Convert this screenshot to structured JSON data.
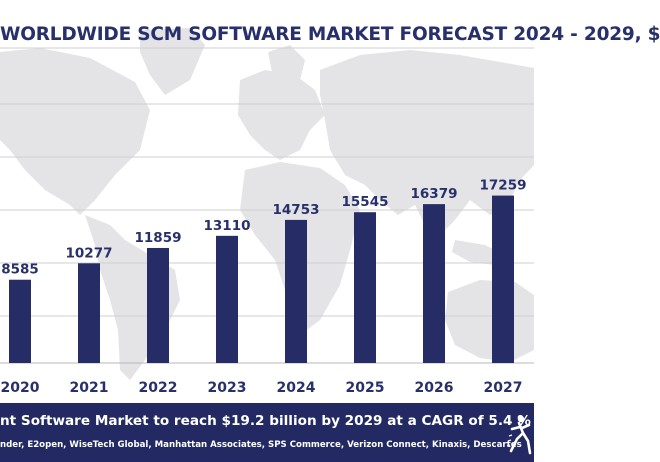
{
  "chart_data": {
    "type": "bar",
    "title": "WORLDWIDE SCM SOFTWARE MARKET FORECAST 2024 - 2029, $",
    "categories": [
      "2020",
      "2021",
      "2022",
      "2023",
      "2024",
      "2025",
      "2026",
      "2027"
    ],
    "values": [
      8585,
      10277,
      11859,
      13110,
      14753,
      15545,
      16379,
      17259
    ],
    "data_labels": [
      "8585",
      "10277",
      "11859",
      "13110",
      "14753",
      "15545",
      "16379",
      "17259"
    ],
    "xlabel": "",
    "ylabel": "",
    "grid": true,
    "legend": "none",
    "bar_color": "#252c66"
  },
  "footer": {
    "headline": "nt Software Market to reach $19.2 billion by 2029 at a CAGR of 5.4 %",
    "vendors": "nder, E2open, WiseTech Global, Manhattan Associates, SPS Commerce, Verizon Connect, Kinaxis, Descartes",
    "background": "#232a63",
    "logo_icon": "runner-logo-icon"
  }
}
